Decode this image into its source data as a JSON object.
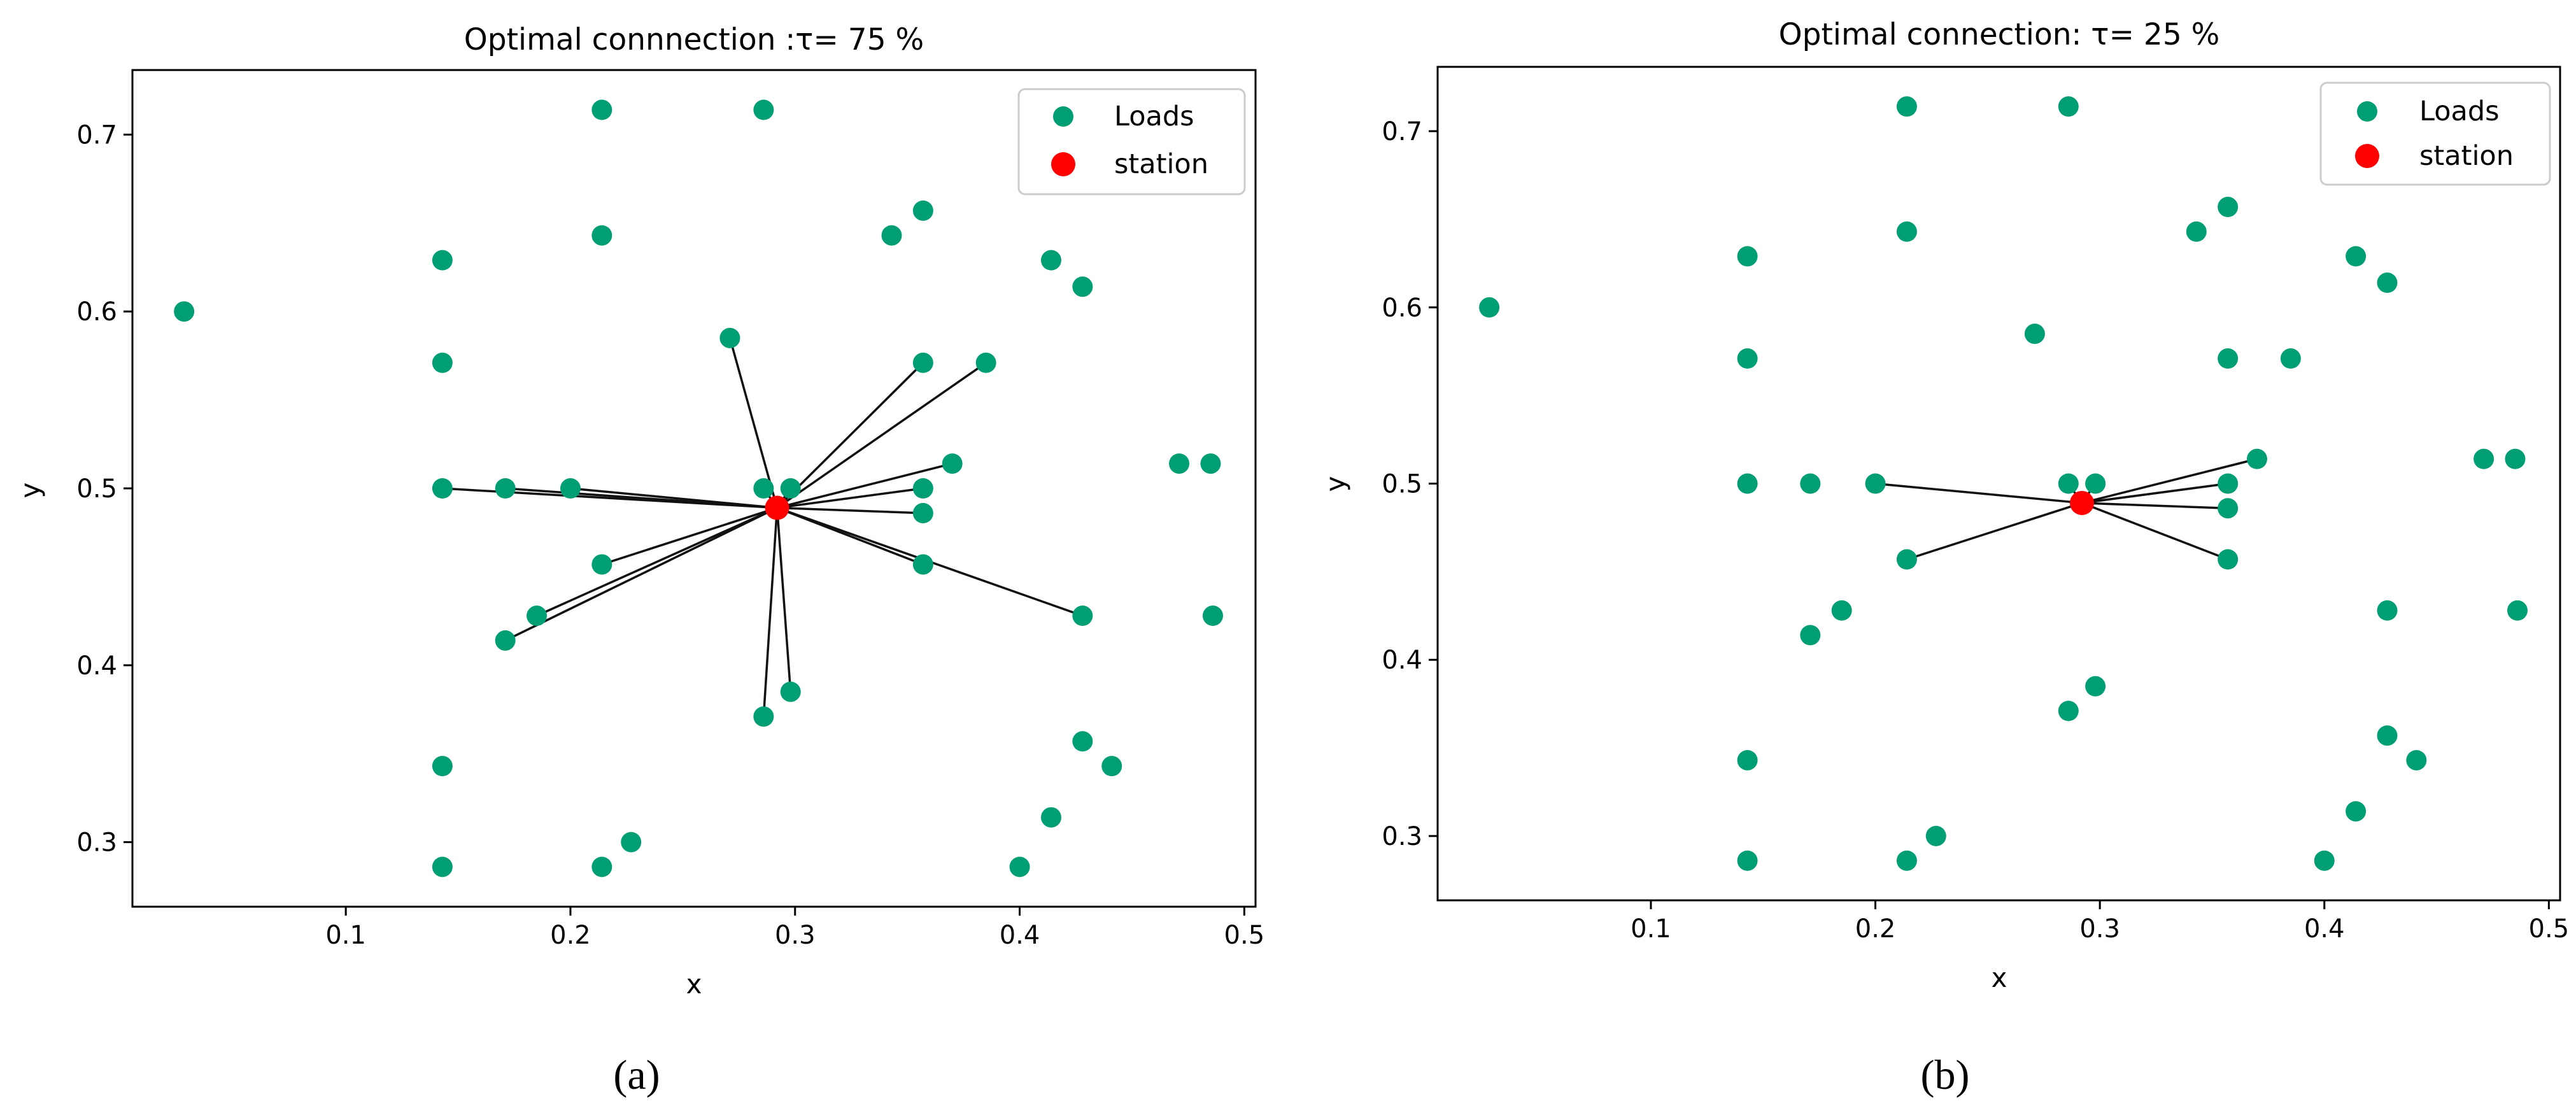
{
  "chart_data": [
    {
      "type": "scatter",
      "title": "Optimal connnection :τ= 75 %",
      "xlabel": "x",
      "ylabel": "y",
      "panel_label": "(a)",
      "xlim": [
        0.005,
        0.505
      ],
      "ylim": [
        0.2635,
        0.7365
      ],
      "xticks": [
        {
          "v": 0.1,
          "label": "0.1"
        },
        {
          "v": 0.2,
          "label": "0.2"
        },
        {
          "v": 0.3,
          "label": "0.3"
        },
        {
          "v": 0.4,
          "label": "0.4"
        },
        {
          "v": 0.5,
          "label": "0.5"
        }
      ],
      "yticks": [
        {
          "v": 0.3,
          "label": "0.3"
        },
        {
          "v": 0.4,
          "label": "0.4"
        },
        {
          "v": 0.5,
          "label": "0.5"
        },
        {
          "v": 0.6,
          "label": "0.6"
        },
        {
          "v": 0.7,
          "label": "0.7"
        }
      ],
      "legend": {
        "position": "top-right",
        "loads_label": "Loads",
        "station_label": "station"
      },
      "colors": {
        "loads": "#009e73",
        "station": "#ff0000",
        "line": "#111111"
      },
      "station": [
        0.292,
        0.489
      ],
      "loads": [
        [
          0.028,
          0.6
        ],
        [
          0.214,
          0.714
        ],
        [
          0.286,
          0.714
        ],
        [
          0.143,
          0.629
        ],
        [
          0.214,
          0.643
        ],
        [
          0.343,
          0.643
        ],
        [
          0.357,
          0.657
        ],
        [
          0.414,
          0.629
        ],
        [
          0.428,
          0.614
        ],
        [
          0.143,
          0.571
        ],
        [
          0.271,
          0.585
        ],
        [
          0.357,
          0.571
        ],
        [
          0.385,
          0.571
        ],
        [
          0.143,
          0.5
        ],
        [
          0.171,
          0.5
        ],
        [
          0.2,
          0.5
        ],
        [
          0.286,
          0.5
        ],
        [
          0.298,
          0.5
        ],
        [
          0.357,
          0.5
        ],
        [
          0.37,
          0.514
        ],
        [
          0.357,
          0.486
        ],
        [
          0.471,
          0.514
        ],
        [
          0.485,
          0.514
        ],
        [
          0.214,
          0.457
        ],
        [
          0.357,
          0.457
        ],
        [
          0.185,
          0.428
        ],
        [
          0.171,
          0.414
        ],
        [
          0.428,
          0.428
        ],
        [
          0.486,
          0.428
        ],
        [
          0.286,
          0.371
        ],
        [
          0.298,
          0.385
        ],
        [
          0.143,
          0.343
        ],
        [
          0.428,
          0.357
        ],
        [
          0.441,
          0.343
        ],
        [
          0.143,
          0.286
        ],
        [
          0.214,
          0.286
        ],
        [
          0.227,
          0.3
        ],
        [
          0.4,
          0.286
        ],
        [
          0.414,
          0.314
        ]
      ],
      "connections": [
        [
          0.271,
          0.585
        ],
        [
          0.357,
          0.571
        ],
        [
          0.385,
          0.571
        ],
        [
          0.143,
          0.5
        ],
        [
          0.171,
          0.5
        ],
        [
          0.2,
          0.5
        ],
        [
          0.286,
          0.5
        ],
        [
          0.298,
          0.5
        ],
        [
          0.357,
          0.5
        ],
        [
          0.37,
          0.514
        ],
        [
          0.357,
          0.486
        ],
        [
          0.214,
          0.457
        ],
        [
          0.357,
          0.457
        ],
        [
          0.185,
          0.428
        ],
        [
          0.171,
          0.414
        ],
        [
          0.428,
          0.428
        ],
        [
          0.286,
          0.371
        ],
        [
          0.298,
          0.385
        ]
      ]
    },
    {
      "type": "scatter",
      "title": "Optimal connection: τ= 25 %",
      "xlabel": "x",
      "ylabel": "y",
      "panel_label": "(b)",
      "xlim": [
        0.005,
        0.505
      ],
      "ylim": [
        0.2635,
        0.7365
      ],
      "xticks": [
        {
          "v": 0.1,
          "label": "0.1"
        },
        {
          "v": 0.2,
          "label": "0.2"
        },
        {
          "v": 0.3,
          "label": "0.3"
        },
        {
          "v": 0.4,
          "label": "0.4"
        },
        {
          "v": 0.5,
          "label": "0.5"
        }
      ],
      "yticks": [
        {
          "v": 0.3,
          "label": "0.3"
        },
        {
          "v": 0.4,
          "label": "0.4"
        },
        {
          "v": 0.5,
          "label": "0.5"
        },
        {
          "v": 0.6,
          "label": "0.6"
        },
        {
          "v": 0.7,
          "label": "0.7"
        }
      ],
      "legend": {
        "position": "top-right",
        "loads_label": "Loads",
        "station_label": "station"
      },
      "colors": {
        "loads": "#009e73",
        "station": "#ff0000",
        "line": "#111111"
      },
      "station": [
        0.292,
        0.489
      ],
      "loads": [
        [
          0.028,
          0.6
        ],
        [
          0.214,
          0.714
        ],
        [
          0.286,
          0.714
        ],
        [
          0.143,
          0.629
        ],
        [
          0.214,
          0.643
        ],
        [
          0.343,
          0.643
        ],
        [
          0.357,
          0.657
        ],
        [
          0.414,
          0.629
        ],
        [
          0.428,
          0.614
        ],
        [
          0.143,
          0.571
        ],
        [
          0.271,
          0.585
        ],
        [
          0.357,
          0.571
        ],
        [
          0.385,
          0.571
        ],
        [
          0.143,
          0.5
        ],
        [
          0.171,
          0.5
        ],
        [
          0.2,
          0.5
        ],
        [
          0.286,
          0.5
        ],
        [
          0.298,
          0.5
        ],
        [
          0.357,
          0.5
        ],
        [
          0.37,
          0.514
        ],
        [
          0.357,
          0.486
        ],
        [
          0.471,
          0.514
        ],
        [
          0.485,
          0.514
        ],
        [
          0.214,
          0.457
        ],
        [
          0.357,
          0.457
        ],
        [
          0.185,
          0.428
        ],
        [
          0.171,
          0.414
        ],
        [
          0.428,
          0.428
        ],
        [
          0.486,
          0.428
        ],
        [
          0.286,
          0.371
        ],
        [
          0.298,
          0.385
        ],
        [
          0.143,
          0.343
        ],
        [
          0.428,
          0.357
        ],
        [
          0.441,
          0.343
        ],
        [
          0.143,
          0.286
        ],
        [
          0.214,
          0.286
        ],
        [
          0.227,
          0.3
        ],
        [
          0.4,
          0.286
        ],
        [
          0.414,
          0.314
        ]
      ],
      "connections": [
        [
          0.2,
          0.5
        ],
        [
          0.286,
          0.5
        ],
        [
          0.298,
          0.5
        ],
        [
          0.357,
          0.5
        ],
        [
          0.37,
          0.514
        ],
        [
          0.357,
          0.486
        ],
        [
          0.214,
          0.457
        ],
        [
          0.357,
          0.457
        ]
      ]
    }
  ]
}
